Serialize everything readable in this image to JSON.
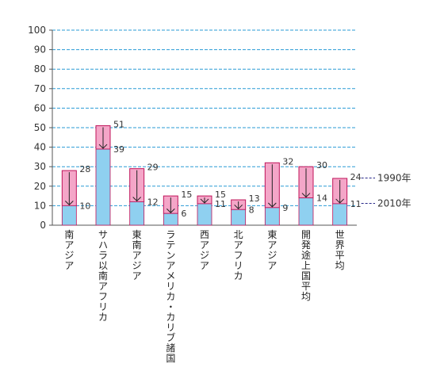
{
  "chart_data": {
    "type": "bar",
    "title": "",
    "xlabel": "",
    "ylabel": "",
    "ylim": [
      0,
      100
    ],
    "yticks": [
      0,
      10,
      20,
      30,
      40,
      50,
      60,
      70,
      80,
      90,
      100
    ],
    "grid": true,
    "categories": [
      "南アジア",
      "サハラ以南アフリカ",
      "東南アジア",
      "ラテンアメリカ・カリブ諸国",
      "西アジア",
      "北アフリカ",
      "東アジア",
      "開発途上国平均",
      "世界平均"
    ],
    "series": [
      {
        "name": "1990年",
        "values": [
          28,
          51,
          29,
          15,
          15,
          13,
          32,
          30,
          24
        ]
      },
      {
        "name": "2010年",
        "values": [
          10,
          39,
          12,
          6,
          11,
          8,
          9,
          14,
          11
        ]
      }
    ],
    "colors": {
      "1990": "#f4a6c8",
      "2010": "#8fd0f0",
      "outline": "#c0145a",
      "grid": "#2a9bd6",
      "legend_line": "#2a2a8a"
    }
  }
}
